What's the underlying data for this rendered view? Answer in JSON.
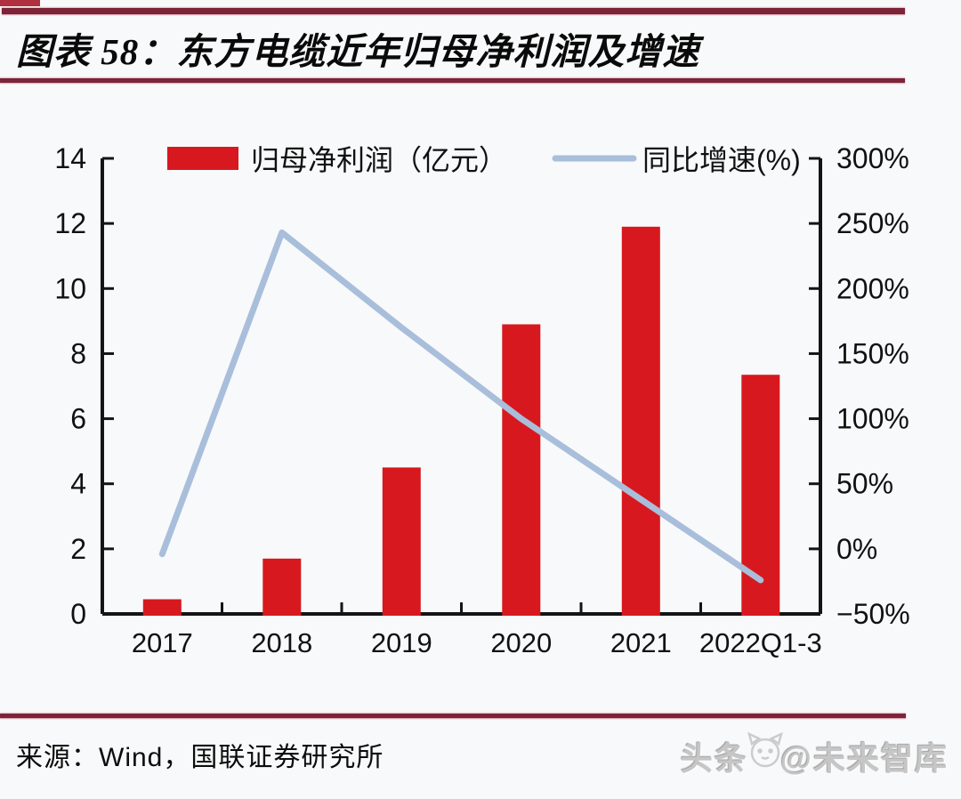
{
  "header": {
    "title": "图表 58：东方电缆近年归母净利润及增速"
  },
  "chart_data": {
    "type": "bar+line combo",
    "title": "东方电缆近年归母净利润及增速",
    "categories": [
      "2017",
      "2018",
      "2019",
      "2020",
      "2021",
      "2022Q1-3"
    ],
    "series": [
      {
        "name": "归母净利润（亿元）",
        "type": "bar",
        "axis": "left",
        "color": "#d7191f",
        "values": [
          0.45,
          1.7,
          4.5,
          8.9,
          11.9,
          7.35
        ]
      },
      {
        "name": "同比增速(%)",
        "type": "line",
        "axis": "right",
        "color": "#a9bedb",
        "values": [
          -4,
          243,
          170,
          100,
          38,
          -24
        ]
      }
    ],
    "left_axis": {
      "min": 0,
      "max": 14,
      "ticks": [
        0,
        2,
        4,
        6,
        8,
        10,
        12,
        14
      ]
    },
    "right_axis": {
      "min": -50,
      "max": 300,
      "tick_values": [
        300,
        250,
        200,
        150,
        100,
        50,
        0,
        -50
      ],
      "tick_labels": [
        "300%",
        "250%",
        "200%",
        "150%",
        "100%",
        "50%",
        "0%",
        "−50%"
      ]
    },
    "legend_position": "top-center",
    "grid": false
  },
  "footer": {
    "source": "来源：Wind，国联证券研究所"
  },
  "watermark": {
    "text_left": "头条",
    "text_right": "@未来智库",
    "logo": "cat-doodle"
  },
  "colors": {
    "rule": "#7c2438",
    "bar": "#d7191f",
    "line": "#a9bedb",
    "background": "#f8f9fa"
  }
}
